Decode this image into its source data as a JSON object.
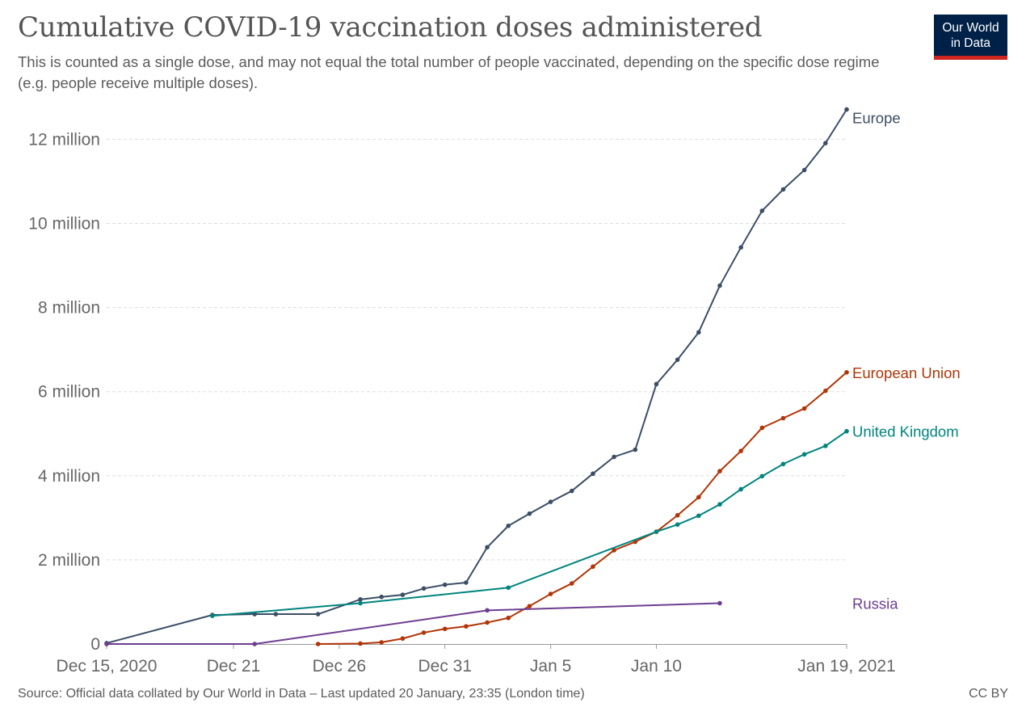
{
  "header": {
    "title": "Cumulative COVID-19 vaccination doses administered",
    "subtitle": "This is counted as a single dose, and may not equal the total number of people vaccinated, depending on the specific dose regime (e.g. people receive multiple doses)."
  },
  "logo": {
    "line1": "Our World",
    "line2": "in Data",
    "bg_color": "#002147",
    "accent_color": "#ce261e"
  },
  "footer": {
    "source": "Source: Official data collated by Our World in Data – Last updated 20 January, 23:35 (London time)",
    "license": "CC BY"
  },
  "chart_data": {
    "type": "line",
    "grid": true,
    "legend": "labels at line ends (right)",
    "x_axis": {
      "range": [
        "2020-12-15",
        "2021-01-19"
      ],
      "ticks": [
        {
          "date": "2020-12-15",
          "label": "Dec 15, 2020"
        },
        {
          "date": "2020-12-21",
          "label": "Dec 21"
        },
        {
          "date": "2020-12-26",
          "label": "Dec 26"
        },
        {
          "date": "2020-12-31",
          "label": "Dec 31"
        },
        {
          "date": "2021-01-05",
          "label": "Jan 5"
        },
        {
          "date": "2021-01-10",
          "label": "Jan 10"
        },
        {
          "date": "2021-01-19",
          "label": "Jan 19, 2021"
        }
      ]
    },
    "y_axis": {
      "range": [
        0,
        12700000
      ],
      "ticks": [
        {
          "value": 0,
          "label": "0"
        },
        {
          "value": 2000000,
          "label": "2 million"
        },
        {
          "value": 4000000,
          "label": "4 million"
        },
        {
          "value": 6000000,
          "label": "6 million"
        },
        {
          "value": 8000000,
          "label": "8 million"
        },
        {
          "value": 10000000,
          "label": "10 million"
        },
        {
          "value": 12000000,
          "label": "12 million"
        }
      ]
    },
    "series": [
      {
        "name": "Europe",
        "color": "#3c4e66",
        "points": [
          [
            "2020-12-15",
            20000
          ],
          [
            "2020-12-20",
            690000
          ],
          [
            "2020-12-22",
            710000
          ],
          [
            "2020-12-23",
            710000
          ],
          [
            "2020-12-25",
            710000
          ],
          [
            "2020-12-27",
            1060000
          ],
          [
            "2020-12-28",
            1120000
          ],
          [
            "2020-12-29",
            1170000
          ],
          [
            "2020-12-30",
            1320000
          ],
          [
            "2020-12-31",
            1410000
          ],
          [
            "2021-01-01",
            1460000
          ],
          [
            "2021-01-02",
            2300000
          ],
          [
            "2021-01-03",
            2810000
          ],
          [
            "2021-01-04",
            3100000
          ],
          [
            "2021-01-05",
            3380000
          ],
          [
            "2021-01-06",
            3640000
          ],
          [
            "2021-01-07",
            4050000
          ],
          [
            "2021-01-08",
            4450000
          ],
          [
            "2021-01-09",
            4620000
          ],
          [
            "2021-01-10",
            6180000
          ],
          [
            "2021-01-11",
            6760000
          ],
          [
            "2021-01-12",
            7410000
          ],
          [
            "2021-01-13",
            8520000
          ],
          [
            "2021-01-14",
            9430000
          ],
          [
            "2021-01-15",
            10300000
          ],
          [
            "2021-01-16",
            10810000
          ],
          [
            "2021-01-17",
            11270000
          ],
          [
            "2021-01-18",
            11910000
          ],
          [
            "2021-01-19",
            12710000
          ]
        ]
      },
      {
        "name": "European Union",
        "color": "#b13507",
        "points": [
          [
            "2020-12-25",
            0
          ],
          [
            "2020-12-27",
            10000
          ],
          [
            "2020-12-28",
            40000
          ],
          [
            "2020-12-29",
            130000
          ],
          [
            "2020-12-30",
            270000
          ],
          [
            "2020-12-31",
            360000
          ],
          [
            "2021-01-01",
            420000
          ],
          [
            "2021-01-02",
            510000
          ],
          [
            "2021-01-03",
            620000
          ],
          [
            "2021-01-04",
            900000
          ],
          [
            "2021-01-05",
            1190000
          ],
          [
            "2021-01-06",
            1440000
          ],
          [
            "2021-01-07",
            1840000
          ],
          [
            "2021-01-08",
            2230000
          ],
          [
            "2021-01-09",
            2430000
          ],
          [
            "2021-01-10",
            2670000
          ],
          [
            "2021-01-11",
            3060000
          ],
          [
            "2021-01-12",
            3490000
          ],
          [
            "2021-01-13",
            4110000
          ],
          [
            "2021-01-14",
            4590000
          ],
          [
            "2021-01-15",
            5140000
          ],
          [
            "2021-01-16",
            5370000
          ],
          [
            "2021-01-17",
            5600000
          ],
          [
            "2021-01-18",
            6020000
          ],
          [
            "2021-01-19",
            6460000
          ]
        ]
      },
      {
        "name": "United Kingdom",
        "color": "#00847e",
        "points": [
          [
            "2020-12-20",
            670000
          ],
          [
            "2020-12-27",
            970000
          ],
          [
            "2021-01-03",
            1340000
          ],
          [
            "2021-01-10",
            2670000
          ],
          [
            "2021-01-11",
            2840000
          ],
          [
            "2021-01-12",
            3050000
          ],
          [
            "2021-01-13",
            3320000
          ],
          [
            "2021-01-14",
            3680000
          ],
          [
            "2021-01-15",
            3990000
          ],
          [
            "2021-01-16",
            4280000
          ],
          [
            "2021-01-17",
            4510000
          ],
          [
            "2021-01-18",
            4710000
          ],
          [
            "2021-01-19",
            5060000
          ]
        ]
      },
      {
        "name": "Russia",
        "color": "#6d3e91",
        "points": [
          [
            "2020-12-15",
            0
          ],
          [
            "2020-12-22",
            0
          ],
          [
            "2021-01-02",
            800000
          ],
          [
            "2021-01-13",
            970000
          ]
        ]
      }
    ]
  }
}
